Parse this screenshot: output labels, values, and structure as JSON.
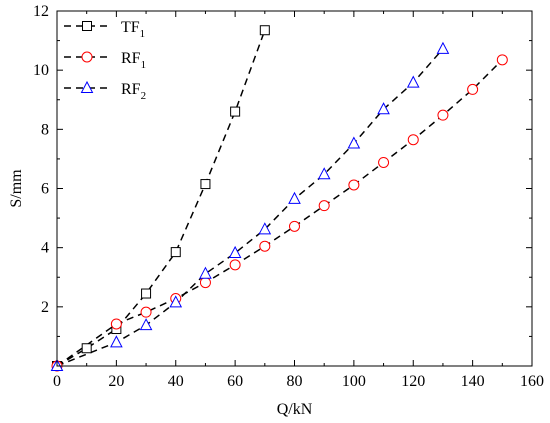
{
  "chart_data": {
    "type": "line",
    "xlabel": "Q/kN",
    "ylabel": "S/mm",
    "xlim": [
      0,
      160
    ],
    "ylim": [
      0,
      12
    ],
    "xticks": [
      0,
      20,
      40,
      60,
      80,
      100,
      120,
      140,
      160
    ],
    "yticks": [
      2,
      4,
      6,
      8,
      10,
      12
    ],
    "grid": false,
    "legend_position": "top-left",
    "line_style": "dashed",
    "series": [
      {
        "name": "TF",
        "subscript": "1",
        "marker": "square",
        "color": "#000000",
        "x": [
          0,
          10,
          20,
          30,
          40,
          50,
          60,
          70
        ],
        "y": [
          0.0,
          0.6,
          1.25,
          2.45,
          3.85,
          6.15,
          8.6,
          11.35
        ]
      },
      {
        "name": "RF",
        "subscript": "1",
        "marker": "circle",
        "color": "#ff0000",
        "x": [
          0,
          20,
          30,
          40,
          50,
          60,
          70,
          80,
          90,
          100,
          110,
          120,
          130,
          140,
          150
        ],
        "y": [
          0.0,
          1.42,
          1.82,
          2.28,
          2.82,
          3.42,
          4.05,
          4.72,
          5.42,
          6.12,
          6.88,
          7.65,
          8.48,
          9.35,
          10.35
        ]
      },
      {
        "name": "RF",
        "subscript": "2",
        "marker": "triangle",
        "color": "#0000ff",
        "x": [
          0,
          20,
          30,
          40,
          50,
          60,
          70,
          80,
          90,
          100,
          110,
          120,
          130
        ],
        "y": [
          0.0,
          0.8,
          1.38,
          2.15,
          3.12,
          3.82,
          4.62,
          5.65,
          6.48,
          7.52,
          8.68,
          9.58,
          10.72
        ]
      }
    ]
  }
}
